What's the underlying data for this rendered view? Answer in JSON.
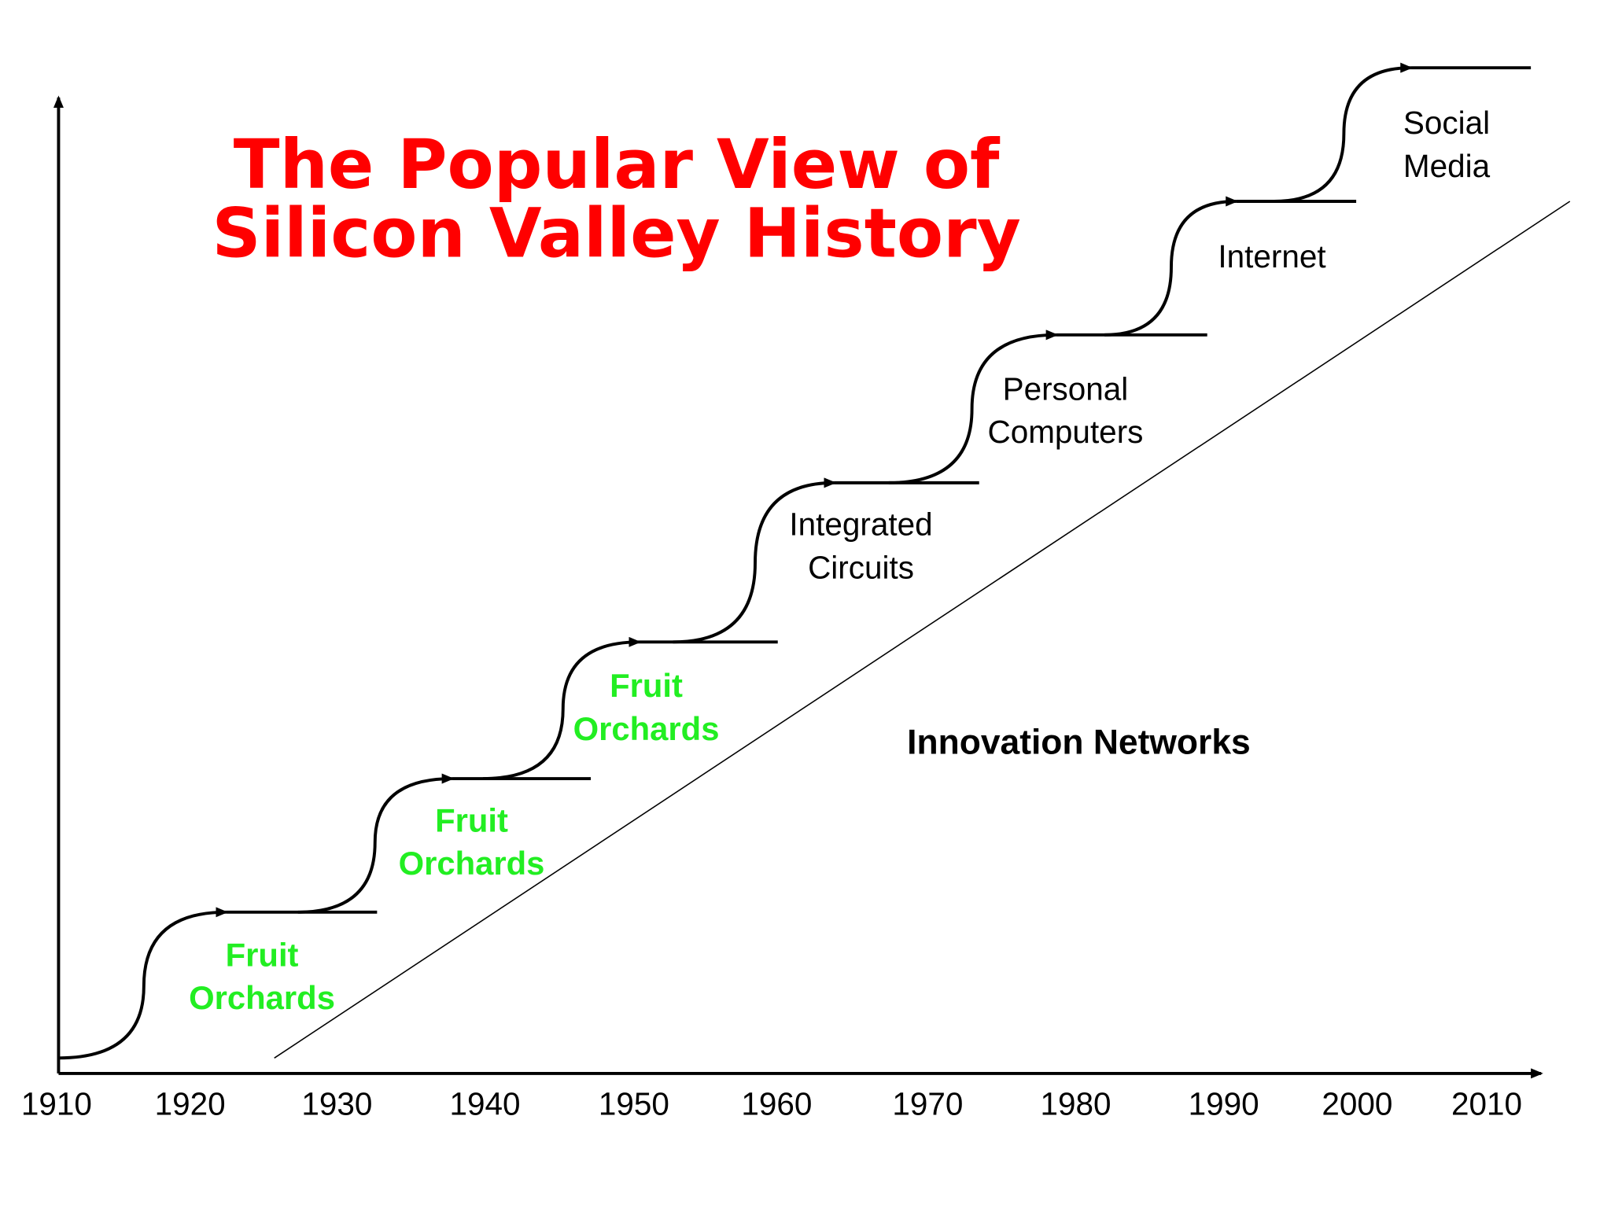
{
  "title": {
    "lines": [
      "The Popular View of",
      "Silicon Valley History"
    ]
  },
  "x_axis": {
    "labels": [
      "1910",
      "1920",
      "1930",
      "1940",
      "1950",
      "1960",
      "1970",
      "1980",
      "1990",
      "2000",
      "2010"
    ]
  },
  "stages": [
    {
      "lines": [
        "Fruit",
        "Orchards"
      ]
    },
    {
      "lines": [
        "Fruit",
        "Orchards"
      ]
    },
    {
      "lines": [
        "Fruit",
        "Orchards"
      ]
    },
    {
      "lines": [
        "Integrated",
        "Circuits"
      ]
    },
    {
      "lines": [
        "Personal",
        "Computers"
      ]
    },
    {
      "lines": [
        "Internet"
      ]
    },
    {
      "lines": [
        "Social",
        "Media"
      ]
    }
  ],
  "network_label": "Innovation Networks"
}
